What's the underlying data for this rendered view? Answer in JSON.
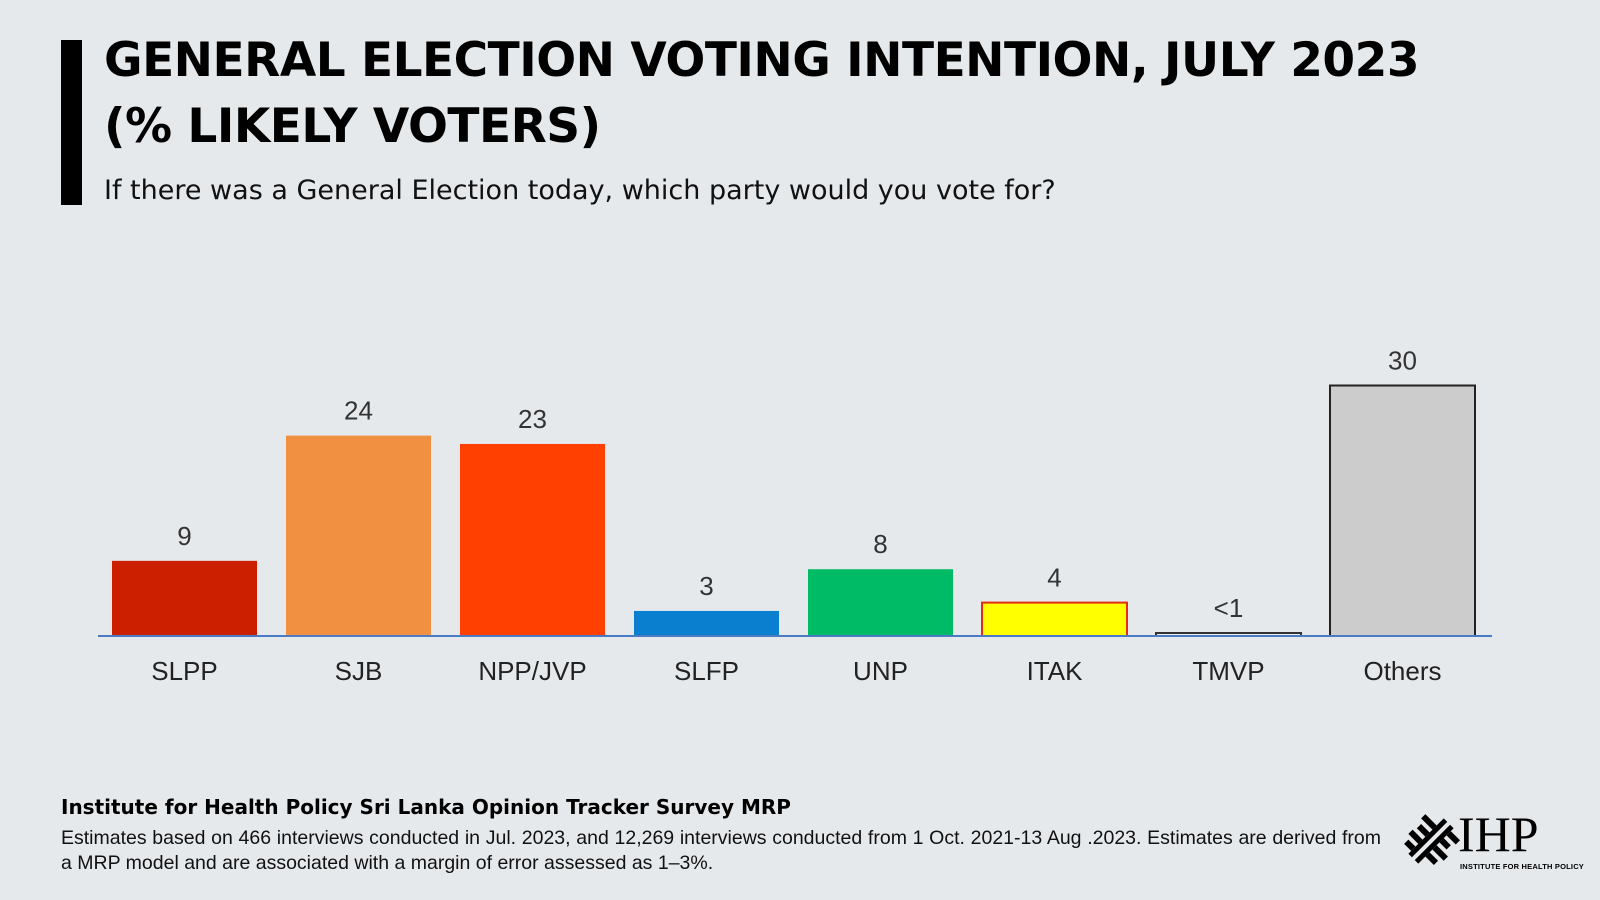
{
  "header": {
    "title_line1": "GENERAL ELECTION VOTING INTENTION, JULY 2023",
    "title_line2": "(% LIKELY VOTERS)",
    "subtitle": "If there was a General Election today, which party would you vote for?"
  },
  "chart_data": {
    "type": "bar",
    "title": "GENERAL ELECTION VOTING INTENTION, JULY 2023 (% LIKELY VOTERS)",
    "subtitle": "If there was a General Election today, which party would you vote for?",
    "categories": [
      "SLPP",
      "SJB",
      "NPP/JVP",
      "SLFP",
      "UNP",
      "ITAK",
      "TMVP",
      "Others"
    ],
    "values": [
      9,
      24,
      23,
      3,
      8,
      4,
      0.3,
      30
    ],
    "value_labels": [
      "9",
      "24",
      "23",
      "3",
      "8",
      "4",
      "<1",
      "30"
    ],
    "colors": [
      "#cc1f00",
      "#f09040",
      "#ff4000",
      "#0a7fd0",
      "#00bb66",
      "#ffff00",
      "#eeeeee",
      "#cccccc"
    ],
    "outlines": [
      null,
      null,
      null,
      null,
      null,
      "#e32d12",
      "#333333",
      "#222222"
    ],
    "axis_color": "#4a7bc4",
    "ylim": [
      0,
      30
    ],
    "xlabel": "",
    "ylabel": "",
    "grid": false,
    "legend": "none"
  },
  "footer": {
    "source_title": "Institute for Health Policy Sri Lanka Opinion Tracker Survey MRP",
    "note": "Estimates based on 466 interviews conducted in Jul. 2023, and 12,269 interviews conducted from 1 Oct. 2021-13 Aug .2023. Estimates are derived from a MRP model and are associated with a margin of error assessed as 1–3%."
  },
  "logo": {
    "text": "IHP",
    "subtext": "INSTITUTE FOR HEALTH POLICY"
  }
}
